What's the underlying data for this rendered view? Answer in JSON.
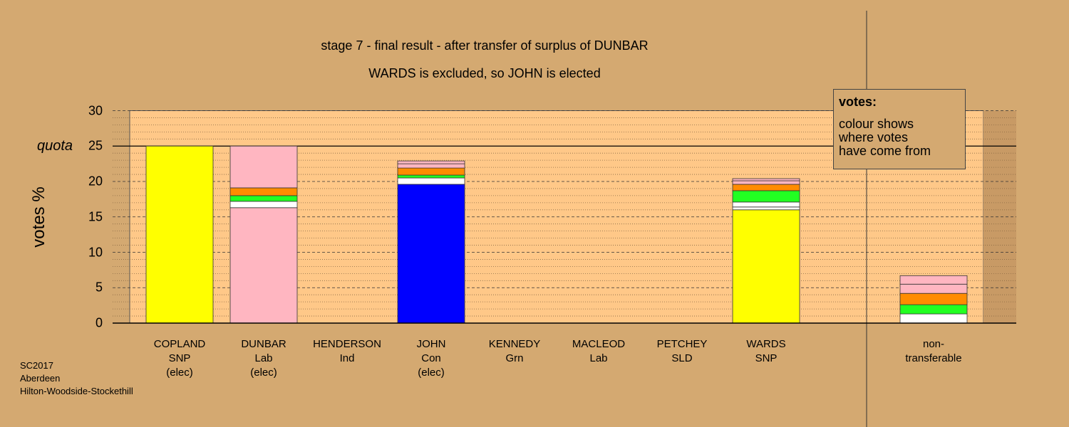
{
  "title_line1": "stage 7 - final result - after transfer of surplus of DUNBAR",
  "title_line2": "WARDS is excluded, so JOHN is elected",
  "chart_data": {
    "type": "bar",
    "stacked": true,
    "ylabel": "votes %",
    "ylim": [
      0,
      30
    ],
    "yticks": [
      0,
      5,
      10,
      15,
      20,
      25,
      30
    ],
    "quota": 25,
    "quota_label": "quota",
    "categories": [
      {
        "name": "COPLAND",
        "party": "SNP",
        "status": "(elec)"
      },
      {
        "name": "DUNBAR",
        "party": "Lab",
        "status": "(elec)"
      },
      {
        "name": "HENDERSON",
        "party": "Ind",
        "status": ""
      },
      {
        "name": "JOHN",
        "party": "Con",
        "status": "(elec)"
      },
      {
        "name": "KENNEDY",
        "party": "Grn",
        "status": ""
      },
      {
        "name": "MACLEOD",
        "party": "Lab",
        "status": ""
      },
      {
        "name": "PETCHEY",
        "party": "SLD",
        "status": ""
      },
      {
        "name": "WARDS",
        "party": "SNP",
        "status": ""
      }
    ],
    "nontransferable_label": [
      "non-",
      "transferable"
    ],
    "bars": [
      [
        {
          "color": "#ffff00",
          "value": 25.0
        }
      ],
      [
        {
          "color": "#ffb6c1",
          "value": 16.3
        },
        {
          "color": "#ffffff",
          "value": 0.9
        },
        {
          "color": "#22ff22",
          "value": 0.8
        },
        {
          "color": "#ff8c00",
          "value": 1.1
        },
        {
          "color": "#ffb6c1",
          "value": 5.9
        }
      ],
      [],
      [
        {
          "color": "#0000ff",
          "value": 19.6
        },
        {
          "color": "#ffffff",
          "value": 0.9
        },
        {
          "color": "#22ff22",
          "value": 0.4
        },
        {
          "color": "#ff8c00",
          "value": 1.0
        },
        {
          "color": "#ffb6c1",
          "value": 0.6
        },
        {
          "color": "#ffb6c1",
          "value": 0.4
        }
      ],
      [],
      [],
      [],
      [
        {
          "color": "#ffff00",
          "value": 16.0
        },
        {
          "color": "#ffffff",
          "value": 0.4
        },
        {
          "color": "#ffffff",
          "value": 0.7
        },
        {
          "color": "#22ff22",
          "value": 1.6
        },
        {
          "color": "#ff8c00",
          "value": 0.9
        },
        {
          "color": "#ffb6c1",
          "value": 0.5
        },
        {
          "color": "#ffb6c1",
          "value": 0.3
        }
      ],
      [
        {
          "color": "#ffffff",
          "value": 1.3
        },
        {
          "color": "#22ff22",
          "value": 1.3
        },
        {
          "color": "#ff8c00",
          "value": 1.6
        },
        {
          "color": "#ffb6c1",
          "value": 1.3
        },
        {
          "color": "#ffb6c1",
          "value": 1.2
        }
      ]
    ]
  },
  "legend": {
    "title": "votes:",
    "lines": [
      "colour shows",
      "where votes",
      "have come from"
    ]
  },
  "footer": {
    "line1": "SC2017",
    "line2": "Aberdeen",
    "line3": "Hilton-Woodside-Stockethill"
  }
}
